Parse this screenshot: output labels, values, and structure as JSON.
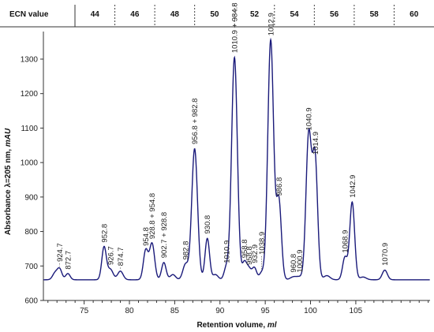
{
  "chart_data": {
    "type": "line",
    "xlabel_prefix": "Retention volume, ",
    "xlabel_unit": "ml",
    "ylabel_prefix": "Absorbance  λ=205 nm, ",
    "ylabel_unit": "mAU",
    "xlim": [
      70.5,
      113.2
    ],
    "ylim": [
      600,
      1380
    ],
    "x_ticks": [
      75,
      80,
      85,
      90,
      95,
      100,
      105
    ],
    "y_ticks": [
      600,
      700,
      800,
      900,
      1000,
      1100,
      1200,
      1300
    ],
    "series": [
      {
        "color": "#1a1a7a",
        "baseline": 660,
        "peaks": [
          {
            "x": 71.8,
            "h": 20,
            "w": 0.28
          },
          {
            "x": 72.3,
            "h": 30,
            "w": 0.25
          },
          {
            "x": 73.2,
            "h": 18,
            "w": 0.25
          },
          {
            "x": 77.2,
            "h": 95,
            "w": 0.25
          },
          {
            "x": 77.9,
            "h": 30,
            "w": 0.3
          },
          {
            "x": 79.0,
            "h": 25,
            "w": 0.3
          },
          {
            "x": 81.8,
            "h": 85,
            "w": 0.26
          },
          {
            "x": 82.5,
            "h": 105,
            "w": 0.28
          },
          {
            "x": 83.8,
            "h": 50,
            "w": 0.25
          },
          {
            "x": 84.8,
            "h": 15,
            "w": 0.3
          },
          {
            "x": 86.2,
            "h": 45,
            "w": 0.3
          },
          {
            "x": 87.2,
            "h": 380,
            "w": 0.32
          },
          {
            "x": 88.6,
            "h": 120,
            "w": 0.25
          },
          {
            "x": 89.5,
            "h": 15,
            "w": 0.3
          },
          {
            "x": 90.7,
            "h": 35,
            "w": 0.25
          },
          {
            "x": 91.6,
            "h": 645,
            "w": 0.32
          },
          {
            "x": 92.7,
            "h": 50,
            "w": 0.25
          },
          {
            "x": 93.2,
            "h": 30,
            "w": 0.25
          },
          {
            "x": 93.8,
            "h": 35,
            "w": 0.25
          },
          {
            "x": 94.6,
            "h": 20,
            "w": 0.25
          },
          {
            "x": 95.6,
            "h": 695,
            "w": 0.32
          },
          {
            "x": 96.5,
            "h": 230,
            "w": 0.28
          },
          {
            "x": 98.1,
            "h": 8,
            "w": 0.35
          },
          {
            "x": 98.8,
            "h": 8,
            "w": 0.35
          },
          {
            "x": 99.8,
            "h": 420,
            "w": 0.3
          },
          {
            "x": 100.5,
            "h": 350,
            "w": 0.28
          },
          {
            "x": 101.8,
            "h": 12,
            "w": 0.35
          },
          {
            "x": 103.8,
            "h": 65,
            "w": 0.26
          },
          {
            "x": 104.6,
            "h": 225,
            "w": 0.27
          },
          {
            "x": 105.8,
            "h": 8,
            "w": 0.35
          },
          {
            "x": 108.2,
            "h": 28,
            "w": 0.28
          }
        ]
      }
    ],
    "annotations": [
      {
        "label": "924.7",
        "x": 72.3,
        "y": 712
      },
      {
        "label": "872.7",
        "x": 73.2,
        "y": 690
      },
      {
        "label": "952.8",
        "x": 77.2,
        "y": 768
      },
      {
        "label": "926.7",
        "x": 77.9,
        "y": 703
      },
      {
        "label": "874.7",
        "x": 79.0,
        "y": 700
      },
      {
        "label": "954.8",
        "x": 81.8,
        "y": 758
      },
      {
        "label": "928.8 + 954.8",
        "x": 82.5,
        "y": 778
      },
      {
        "label": "902.7 + 928.8",
        "x": 83.8,
        "y": 723
      },
      {
        "label": "982.8",
        "x": 86.2,
        "y": 718
      },
      {
        "label": "956.8 + 982.8",
        "x": 87.2,
        "y": 1053
      },
      {
        "label": "930.8",
        "x": 88.6,
        "y": 793
      },
      {
        "label": "1010.9",
        "x": 90.7,
        "y": 708
      },
      {
        "label": "1010.9 + 984.8",
        "x": 91.6,
        "y": 1318
      },
      {
        "label": "958.8",
        "x": 92.7,
        "y": 723
      },
      {
        "label": "958.8",
        "x": 93.2,
        "y": 703
      },
      {
        "label": "932.9",
        "x": 93.8,
        "y": 708
      },
      {
        "label": "1038.9",
        "x": 94.6,
        "y": 733
      },
      {
        "label": "1012.9",
        "x": 95.6,
        "y": 1368
      },
      {
        "label": "986.8",
        "x": 96.5,
        "y": 903
      },
      {
        "label": "960.8",
        "x": 98.1,
        "y": 681
      },
      {
        "label": "1000.9",
        "x": 98.8,
        "y": 681
      },
      {
        "label": "1040.9",
        "x": 99.8,
        "y": 1093
      },
      {
        "label": "1014.9",
        "x": 100.5,
        "y": 1023
      },
      {
        "label": "1068.9",
        "x": 103.8,
        "y": 738
      },
      {
        "label": "1042.9",
        "x": 104.6,
        "y": 898
      },
      {
        "label": "1070.9",
        "x": 108.2,
        "y": 701
      }
    ]
  },
  "ecn_header": {
    "title": "ECN value",
    "values": [
      "44",
      "46",
      "48",
      "50",
      "52",
      "54",
      "56",
      "58",
      "60"
    ]
  }
}
